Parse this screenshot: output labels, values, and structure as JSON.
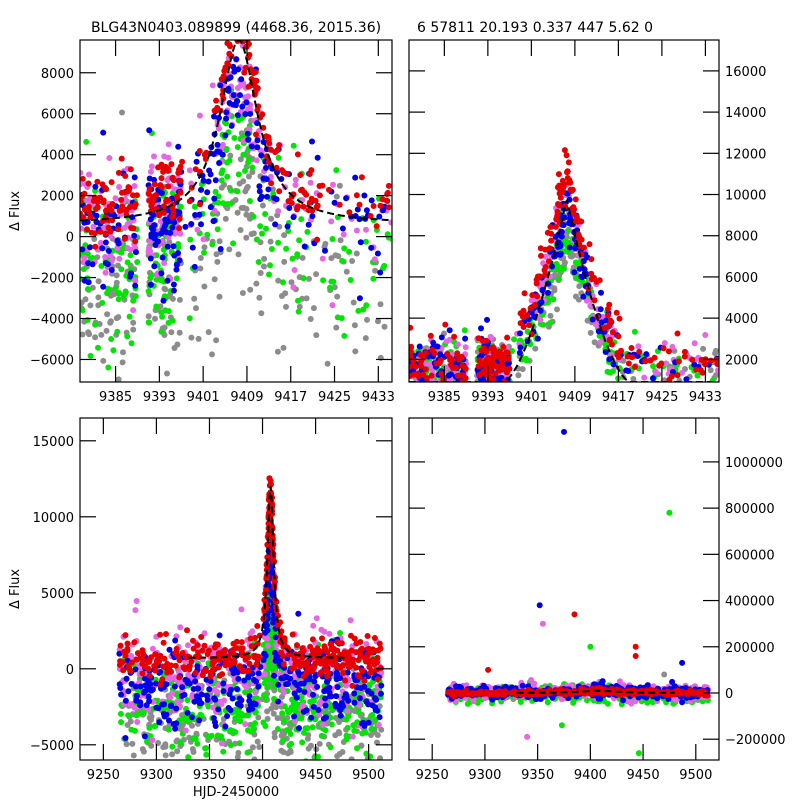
{
  "figure": {
    "title_left": "BLG43N0403.089899 (4468.36, 2015.36)",
    "title_right": "6 57811 20.193 0.337 447  5.62    0",
    "colors": {
      "gray": "#8c8c8c",
      "green": "#00e600",
      "blue": "#0000e6",
      "pink": "#e666e6",
      "red": "#e60000",
      "model": "#000000"
    }
  },
  "chart_data": [
    {
      "id": "top-left",
      "type": "scatter",
      "title": "BLG43N0403.089899 (4468.36, 2015.36)",
      "xlabel": "",
      "ylabel": "Δ Flux",
      "xlim": [
        9378.5,
        9435.5
      ],
      "ylim": [
        -7100,
        9600
      ],
      "xticks": [
        9385,
        9393,
        9401,
        9409,
        9417,
        9425,
        9433
      ],
      "yticks": [
        -6000,
        -4000,
        -2000,
        0,
        2000,
        4000,
        6000,
        8000
      ],
      "yaxis_side": "left",
      "model": {
        "t0": 9407.5,
        "baseline": 600,
        "peak": 9600,
        "width": 4.2,
        "shape": "lorentz"
      },
      "series": [
        {
          "name": "gray",
          "baseline": -2500,
          "spread": 2200,
          "peak_scale": 0.55
        },
        {
          "name": "green",
          "baseline": -1500,
          "spread": 2000,
          "peak_scale": 0.7
        },
        {
          "name": "pink",
          "baseline": 500,
          "spread": 1500,
          "peak_scale": 0.85
        },
        {
          "name": "blue",
          "baseline": 200,
          "spread": 1400,
          "peak_scale": 0.8
        },
        {
          "name": "red",
          "baseline": 1100,
          "spread": 800,
          "peak_scale": 1.0
        }
      ]
    },
    {
      "id": "top-right",
      "type": "scatter",
      "title": "6 57811 20.193 0.337 447  5.62    0",
      "xlabel": "",
      "ylabel": "",
      "xlim": [
        9378.5,
        9435.5
      ],
      "ylim": [
        900,
        17500
      ],
      "xticks": [
        9385,
        9393,
        9401,
        9409,
        9417,
        9425,
        9433
      ],
      "yticks": [
        2000,
        4000,
        6000,
        8000,
        10000,
        12000,
        14000,
        16000
      ],
      "yaxis_side": "right",
      "model": {
        "t0": 9407.5,
        "baseline": 900,
        "peak": 9800,
        "width": 4.5,
        "shape": "linear"
      },
      "series": [
        {
          "name": "gray",
          "baseline": 1500,
          "spread": 700,
          "peak_scale": 0.7
        },
        {
          "name": "green",
          "baseline": 1500,
          "spread": 700,
          "peak_scale": 0.75
        },
        {
          "name": "pink",
          "baseline": 1700,
          "spread": 700,
          "peak_scale": 0.9
        },
        {
          "name": "blue",
          "baseline": 1600,
          "spread": 700,
          "peak_scale": 0.9
        },
        {
          "name": "red",
          "baseline": 1900,
          "spread": 600,
          "peak_scale": 1.05
        }
      ]
    },
    {
      "id": "bottom-left",
      "type": "scatter",
      "title": "",
      "xlabel": "HJD-2450000",
      "ylabel": "Δ Flux",
      "xlim": [
        9228,
        9522
      ],
      "ylim": [
        -6000,
        16500
      ],
      "xticks": [
        9250,
        9300,
        9350,
        9400,
        9450,
        9500
      ],
      "yticks": [
        -5000,
        0,
        5000,
        10000,
        15000
      ],
      "yaxis_side": "left",
      "model": {
        "t0": 9407.5,
        "baseline": 700,
        "peak": 12000,
        "width": 3.5,
        "shape": "lorentz"
      },
      "series": [
        {
          "name": "gray",
          "baseline": -3500,
          "spread": 1800,
          "peak_scale": 0.5
        },
        {
          "name": "green",
          "baseline": -2500,
          "spread": 1800,
          "peak_scale": 0.6
        },
        {
          "name": "pink",
          "baseline": -500,
          "spread": 1500,
          "peak_scale": 0.8
        },
        {
          "name": "blue",
          "baseline": -1200,
          "spread": 1300,
          "peak_scale": 0.8
        },
        {
          "name": "red",
          "baseline": 600,
          "spread": 600,
          "peak_scale": 1.0
        }
      ]
    },
    {
      "id": "bottom-right",
      "type": "scatter",
      "title": "",
      "xlabel": "",
      "ylabel": "",
      "xlim": [
        9228,
        9522
      ],
      "ylim": [
        -290000,
        1190000
      ],
      "xticks": [
        9250,
        9300,
        9350,
        9400,
        9450,
        9500
      ],
      "yticks": [
        -200000,
        0,
        200000,
        400000,
        600000,
        800000,
        1000000
      ],
      "yaxis_side": "right",
      "model": {
        "t0": 9407.5,
        "baseline": 0,
        "peak": 10000,
        "width": 20,
        "shape": "lorentz"
      },
      "series": [
        {
          "name": "gray",
          "baseline": -2000,
          "spread": 12000,
          "peak_scale": 1.0
        },
        {
          "name": "green",
          "baseline": -8000,
          "spread": 18000,
          "peak_scale": 1.0
        },
        {
          "name": "pink",
          "baseline": 2000,
          "spread": 15000,
          "peak_scale": 1.0
        },
        {
          "name": "blue",
          "baseline": 2000,
          "spread": 12000,
          "peak_scale": 1.0
        },
        {
          "name": "red",
          "baseline": 0,
          "spread": 5000,
          "peak_scale": 1.0
        }
      ],
      "outliers": [
        {
          "series": "blue",
          "x": 9375,
          "y": 1130000
        },
        {
          "series": "green",
          "x": 9475,
          "y": 780000
        },
        {
          "series": "blue",
          "x": 9352,
          "y": 380000
        },
        {
          "series": "red",
          "x": 9385,
          "y": 340000
        },
        {
          "series": "pink",
          "x": 9355,
          "y": 300000
        },
        {
          "series": "green",
          "x": 9400,
          "y": 200000
        },
        {
          "series": "red",
          "x": 9443,
          "y": 200000
        },
        {
          "series": "blue",
          "x": 9487,
          "y": 130000
        },
        {
          "series": "gray",
          "x": 9470,
          "y": 80000
        },
        {
          "series": "pink",
          "x": 9428,
          "y": 50000
        },
        {
          "series": "red",
          "x": 9303,
          "y": 100000
        },
        {
          "series": "red",
          "x": 9443,
          "y": 160000
        },
        {
          "series": "green",
          "x": 9373,
          "y": -140000
        },
        {
          "series": "pink",
          "x": 9340,
          "y": -190000
        },
        {
          "series": "green",
          "x": 9446,
          "y": -260000
        },
        {
          "series": "blue",
          "x": 9487,
          "y": -40000
        }
      ]
    }
  ]
}
